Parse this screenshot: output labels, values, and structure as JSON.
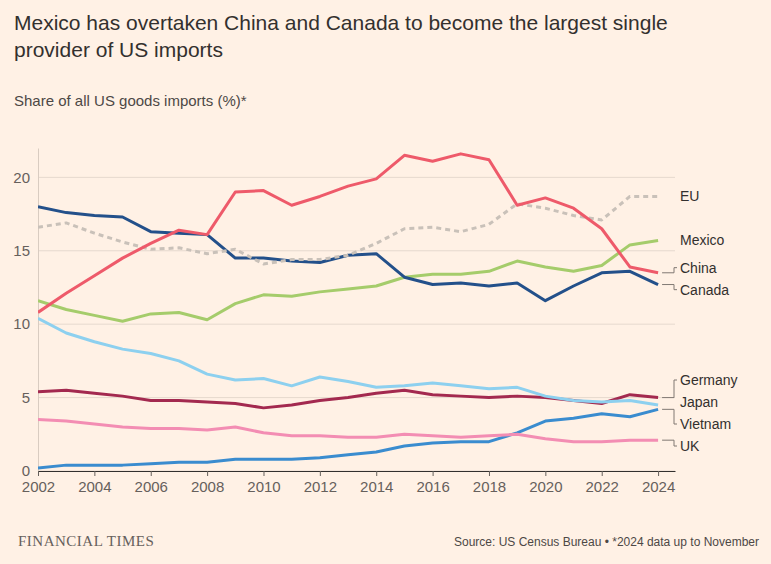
{
  "chart_data": {
    "type": "line",
    "title": "Mexico has overtaken China and Canada to become the largest single provider of US imports",
    "subtitle": "Share of all US goods imports (%)*",
    "brand": "FINANCIAL TIMES",
    "source": "Source: US Census Bureau • *2024 data up to November",
    "x": [
      2002,
      2003,
      2004,
      2005,
      2006,
      2007,
      2008,
      2009,
      2010,
      2011,
      2012,
      2013,
      2014,
      2015,
      2016,
      2017,
      2018,
      2019,
      2020,
      2021,
      2022,
      2023,
      2024
    ],
    "xlim": [
      2002,
      2024.6
    ],
    "xticks": [
      2002,
      2004,
      2006,
      2008,
      2010,
      2012,
      2014,
      2016,
      2018,
      2020,
      2022,
      2024
    ],
    "ylim": [
      0,
      22
    ],
    "yticks": [
      0,
      5,
      10,
      15,
      20
    ],
    "grid": true,
    "series": [
      {
        "name": "EU",
        "color": "#c9c1b9",
        "line_style": "dashed",
        "values": [
          16.6,
          16.9,
          16.2,
          15.6,
          15.1,
          15.2,
          14.8,
          15.1,
          14.1,
          14.4,
          14.4,
          14.7,
          15.5,
          16.5,
          16.6,
          16.3,
          16.8,
          18.2,
          17.9,
          17.4,
          17.1,
          18.7,
          18.7
        ]
      },
      {
        "name": "Mexico",
        "color": "#a5cc6b",
        "line_style": "solid",
        "values": [
          11.6,
          11.0,
          10.6,
          10.2,
          10.7,
          10.8,
          10.3,
          11.4,
          12.0,
          11.9,
          12.2,
          12.4,
          12.6,
          13.2,
          13.4,
          13.4,
          13.6,
          14.3,
          13.9,
          13.6,
          14.0,
          15.4,
          15.7
        ]
      },
      {
        "name": "China",
        "color": "#ee5a6a",
        "line_style": "solid",
        "values": [
          10.8,
          12.1,
          13.3,
          14.5,
          15.5,
          16.4,
          16.1,
          19.0,
          19.1,
          18.1,
          18.7,
          19.4,
          19.9,
          21.5,
          21.1,
          21.6,
          21.2,
          18.1,
          18.6,
          17.9,
          16.5,
          13.9,
          13.5
        ]
      },
      {
        "name": "Canada",
        "color": "#23508a",
        "line_style": "solid",
        "values": [
          18.0,
          17.6,
          17.4,
          17.3,
          16.3,
          16.2,
          16.1,
          14.5,
          14.5,
          14.3,
          14.2,
          14.7,
          14.8,
          13.2,
          12.7,
          12.8,
          12.6,
          12.8,
          11.6,
          12.6,
          13.5,
          13.6,
          12.7
        ]
      },
      {
        "name": "Germany",
        "color": "#a3294f",
        "line_style": "solid",
        "values": [
          5.4,
          5.5,
          5.3,
          5.1,
          4.8,
          4.8,
          4.7,
          4.6,
          4.3,
          4.5,
          4.8,
          5.0,
          5.3,
          5.5,
          5.2,
          5.1,
          5.0,
          5.1,
          5.0,
          4.8,
          4.6,
          5.2,
          5.0
        ]
      },
      {
        "name": "Japan",
        "color": "#8dd0ef",
        "line_style": "solid",
        "values": [
          10.4,
          9.4,
          8.8,
          8.3,
          8.0,
          7.5,
          6.6,
          6.2,
          6.3,
          5.8,
          6.4,
          6.1,
          5.7,
          5.8,
          6.0,
          5.8,
          5.6,
          5.7,
          5.1,
          4.8,
          4.7,
          4.8,
          4.5
        ]
      },
      {
        "name": "Vietnam",
        "color": "#3a8ccf",
        "line_style": "solid",
        "values": [
          0.2,
          0.4,
          0.4,
          0.4,
          0.5,
          0.6,
          0.6,
          0.8,
          0.8,
          0.8,
          0.9,
          1.1,
          1.3,
          1.7,
          1.9,
          2.0,
          2.0,
          2.6,
          3.4,
          3.6,
          3.9,
          3.7,
          4.2
        ]
      },
      {
        "name": "UK",
        "color": "#f38db3",
        "line_style": "solid",
        "values": [
          3.5,
          3.4,
          3.2,
          3.0,
          2.9,
          2.9,
          2.8,
          3.0,
          2.6,
          2.4,
          2.4,
          2.3,
          2.3,
          2.5,
          2.4,
          2.3,
          2.4,
          2.5,
          2.2,
          2.0,
          2.0,
          2.1,
          2.1
        ]
      }
    ]
  }
}
